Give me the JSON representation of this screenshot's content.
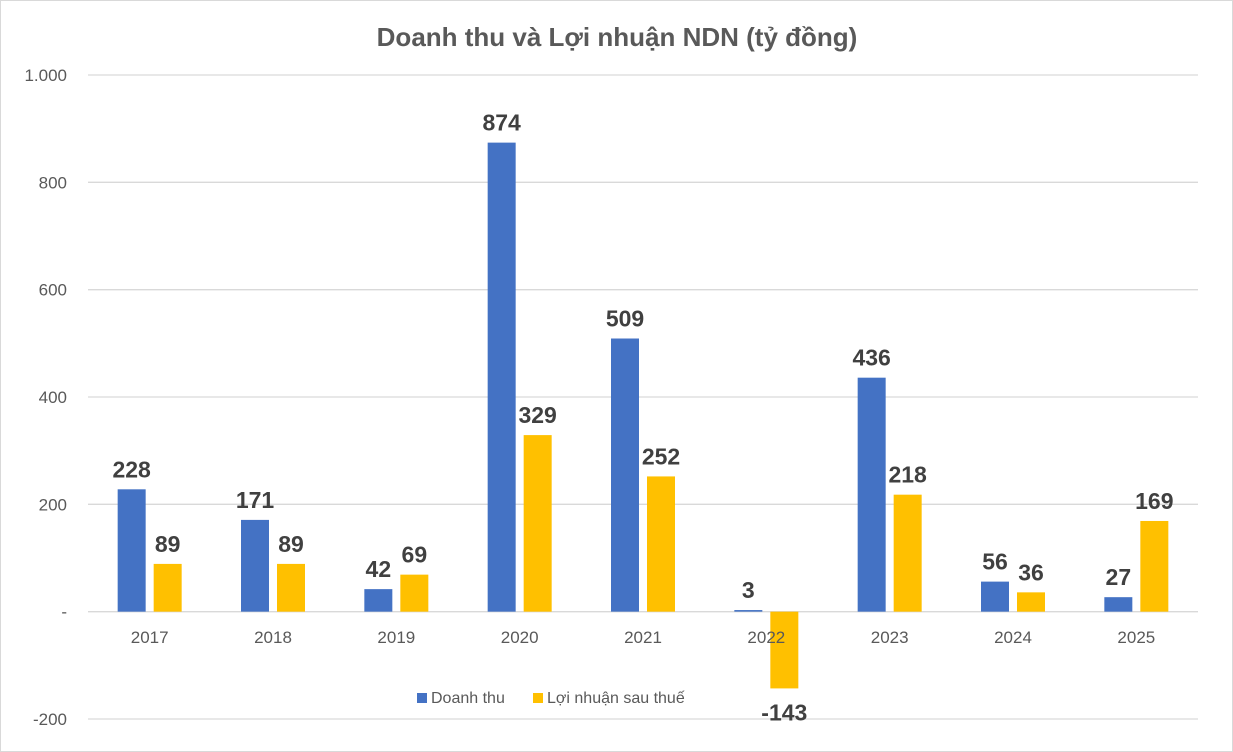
{
  "chart_data": {
    "type": "bar",
    "title": "Doanh thu và Lợi nhuận NDN (tỷ đồng)",
    "xlabel": "",
    "ylabel": "",
    "categories": [
      "2017",
      "2018",
      "2019",
      "2020",
      "2021",
      "2022",
      "2023",
      "2024",
      "2025"
    ],
    "series": [
      {
        "name": "Doanh thu",
        "color": "#4472C4",
        "values": [
          228,
          171,
          42,
          874,
          509,
          3,
          436,
          56,
          27
        ]
      },
      {
        "name": "Lợi nhuận sau thuế",
        "color": "#FFC000",
        "values": [
          89,
          89,
          69,
          329,
          252,
          -143,
          218,
          36,
          169
        ]
      }
    ],
    "ylim": [
      -200,
      1000
    ],
    "yticks": [
      {
        "value": 1000,
        "label": "1.000"
      },
      {
        "value": 800,
        "label": "800"
      },
      {
        "value": 600,
        "label": "600"
      },
      {
        "value": 400,
        "label": "400"
      },
      {
        "value": 200,
        "label": "200"
      },
      {
        "value": 0,
        "label": "-"
      },
      {
        "value": -200,
        "label": "-200"
      }
    ],
    "grid": true,
    "legend": "bottom-center"
  }
}
